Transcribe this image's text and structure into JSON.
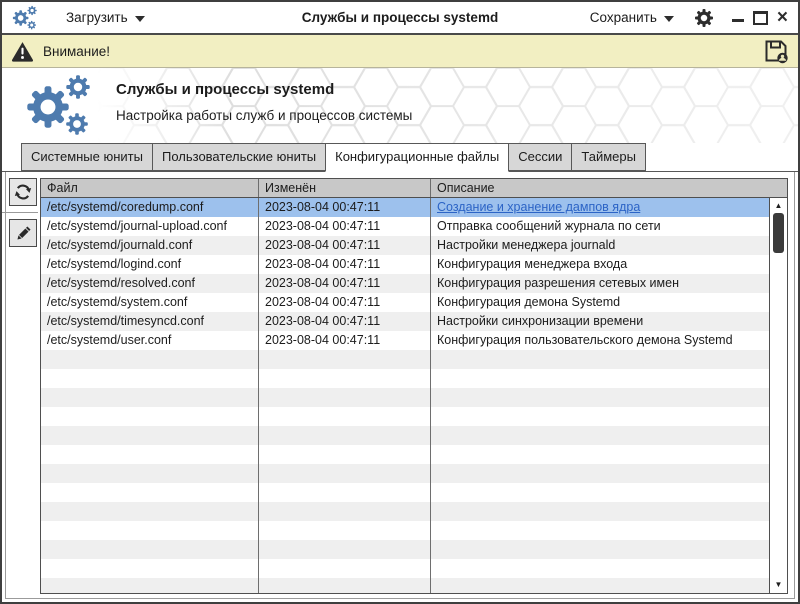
{
  "titlebar": {
    "app_icon": "gears-icon",
    "load_label": "Загрузить",
    "title": "Службы и процессы systemd",
    "save_label": "Сохранить",
    "settings_icon": "gear-icon"
  },
  "warning_bar": {
    "icon": "warning-triangle-icon",
    "text": "Внимание!",
    "save_icon": "floppy-disk-icon"
  },
  "header": {
    "logo": "gears-logo",
    "title": "Службы и процессы systemd",
    "subtitle": "Настройка работы служб и процессов системы"
  },
  "tabs": [
    {
      "label": "Системные юниты",
      "active": false
    },
    {
      "label": "Пользовательские юниты",
      "active": false
    },
    {
      "label": "Конфигурационные файлы",
      "active": true
    },
    {
      "label": "Сессии",
      "active": false
    },
    {
      "label": "Таймеры",
      "active": false
    }
  ],
  "side_toolbar": [
    {
      "icon": "refresh-icon"
    },
    {
      "icon": "pencil-icon"
    }
  ],
  "table": {
    "columns": [
      "Файл",
      "Изменён",
      "Описание"
    ],
    "rows": [
      {
        "file": "/etc/systemd/coredump.conf",
        "modified": "2023-08-04 00:47:11",
        "description": "Создание и хранение дампов ядра",
        "selected": true,
        "link": true
      },
      {
        "file": "/etc/systemd/journal-upload.conf",
        "modified": "2023-08-04 00:47:11",
        "description": "Отправка сообщений журнала по сети"
      },
      {
        "file": "/etc/systemd/journald.conf",
        "modified": "2023-08-04 00:47:11",
        "description": "Настройки менеджера journald"
      },
      {
        "file": "/etc/systemd/logind.conf",
        "modified": "2023-08-04 00:47:11",
        "description": "Конфигурация менеджера входа"
      },
      {
        "file": "/etc/systemd/resolved.conf",
        "modified": "2023-08-04 00:47:11",
        "description": "Конфигурация разрешения сетевых имен"
      },
      {
        "file": "/etc/systemd/system.conf",
        "modified": "2023-08-04 00:47:11",
        "description": "Конфигурация демона Systemd"
      },
      {
        "file": "/etc/systemd/timesyncd.conf",
        "modified": "2023-08-04 00:47:11",
        "description": "Настройки синхронизации времени"
      },
      {
        "file": "/etc/systemd/user.conf",
        "modified": "2023-08-04 00:47:11",
        "description": "Конфигурация пользовательского демона Systemd"
      }
    ]
  },
  "icons": {
    "scroll_up": "▲",
    "scroll_down": "▼"
  },
  "colors": {
    "accent_blue": "#4e7bae",
    "warning_bg": "#f2efc2",
    "selected_row": "#9dc1ed",
    "link": "#2c64c6",
    "row_alt": "#efefef",
    "tab_inactive": "#d7d7d7",
    "table_header_bg": "#c8c8c8"
  }
}
